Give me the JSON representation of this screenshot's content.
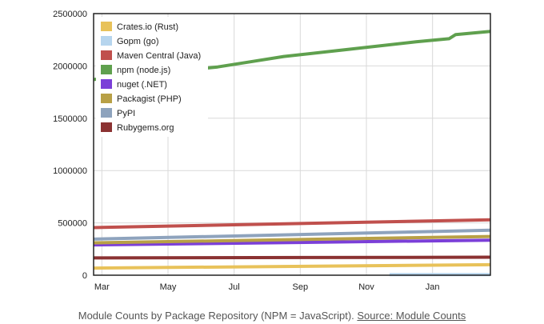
{
  "caption": {
    "text": "Module Counts by Package Repository (NPM = JavaScript).",
    "link_label": "Source: Module Counts"
  },
  "chart_data": {
    "type": "line",
    "title": "",
    "xlabel": "",
    "ylabel": "",
    "x_ticks": [
      "Mar",
      "May",
      "Jul",
      "Sep",
      "Nov",
      "Jan"
    ],
    "x_tick_pos": [
      0.5,
      2.5,
      4.5,
      6.5,
      8.5,
      10.5
    ],
    "xlim": [
      0.25,
      12.25
    ],
    "y_ticks": [
      "0",
      "500000",
      "1000000",
      "1500000",
      "2000000",
      "2500000"
    ],
    "ylim": [
      0,
      2500000
    ],
    "grid": true,
    "legend_position": "top-left",
    "series": [
      {
        "name": "Crates.io (Rust)",
        "color": "#e8c25a",
        "x": [
          0.25,
          12.25
        ],
        "y": [
          68000,
          100000
        ]
      },
      {
        "name": "Gopm (go)",
        "color": "#b6d5ee",
        "x": [
          9.2,
          12.25
        ],
        "y": [
          5000,
          5000
        ]
      },
      {
        "name": "Maven Central (Java)",
        "color": "#c0504d",
        "x": [
          0.25,
          12.25
        ],
        "y": [
          455000,
          530000
        ]
      },
      {
        "name": "npm (node.js)",
        "color": "#5fa04e",
        "x": [
          0.25,
          4.0,
          5.0,
          6.0,
          8.0,
          10.0,
          11.0,
          11.2,
          12.25
        ],
        "y": [
          1870000,
          1990000,
          2040000,
          2090000,
          2160000,
          2230000,
          2260000,
          2300000,
          2330000
        ]
      },
      {
        "name": "nuget (.NET)",
        "color": "#7b3fd8",
        "x": [
          0.25,
          12.25
        ],
        "y": [
          290000,
          335000
        ]
      },
      {
        "name": "Packagist (PHP)",
        "color": "#b8a046",
        "x": [
          0.25,
          12.25
        ],
        "y": [
          310000,
          370000
        ]
      },
      {
        "name": "PyPI",
        "color": "#8ea3bd",
        "x": [
          0.25,
          12.25
        ],
        "y": [
          345000,
          430000
        ]
      },
      {
        "name": "Rubygems.org",
        "color": "#8b3232",
        "x": [
          0.25,
          12.25
        ],
        "y": [
          165000,
          172000
        ]
      }
    ]
  }
}
